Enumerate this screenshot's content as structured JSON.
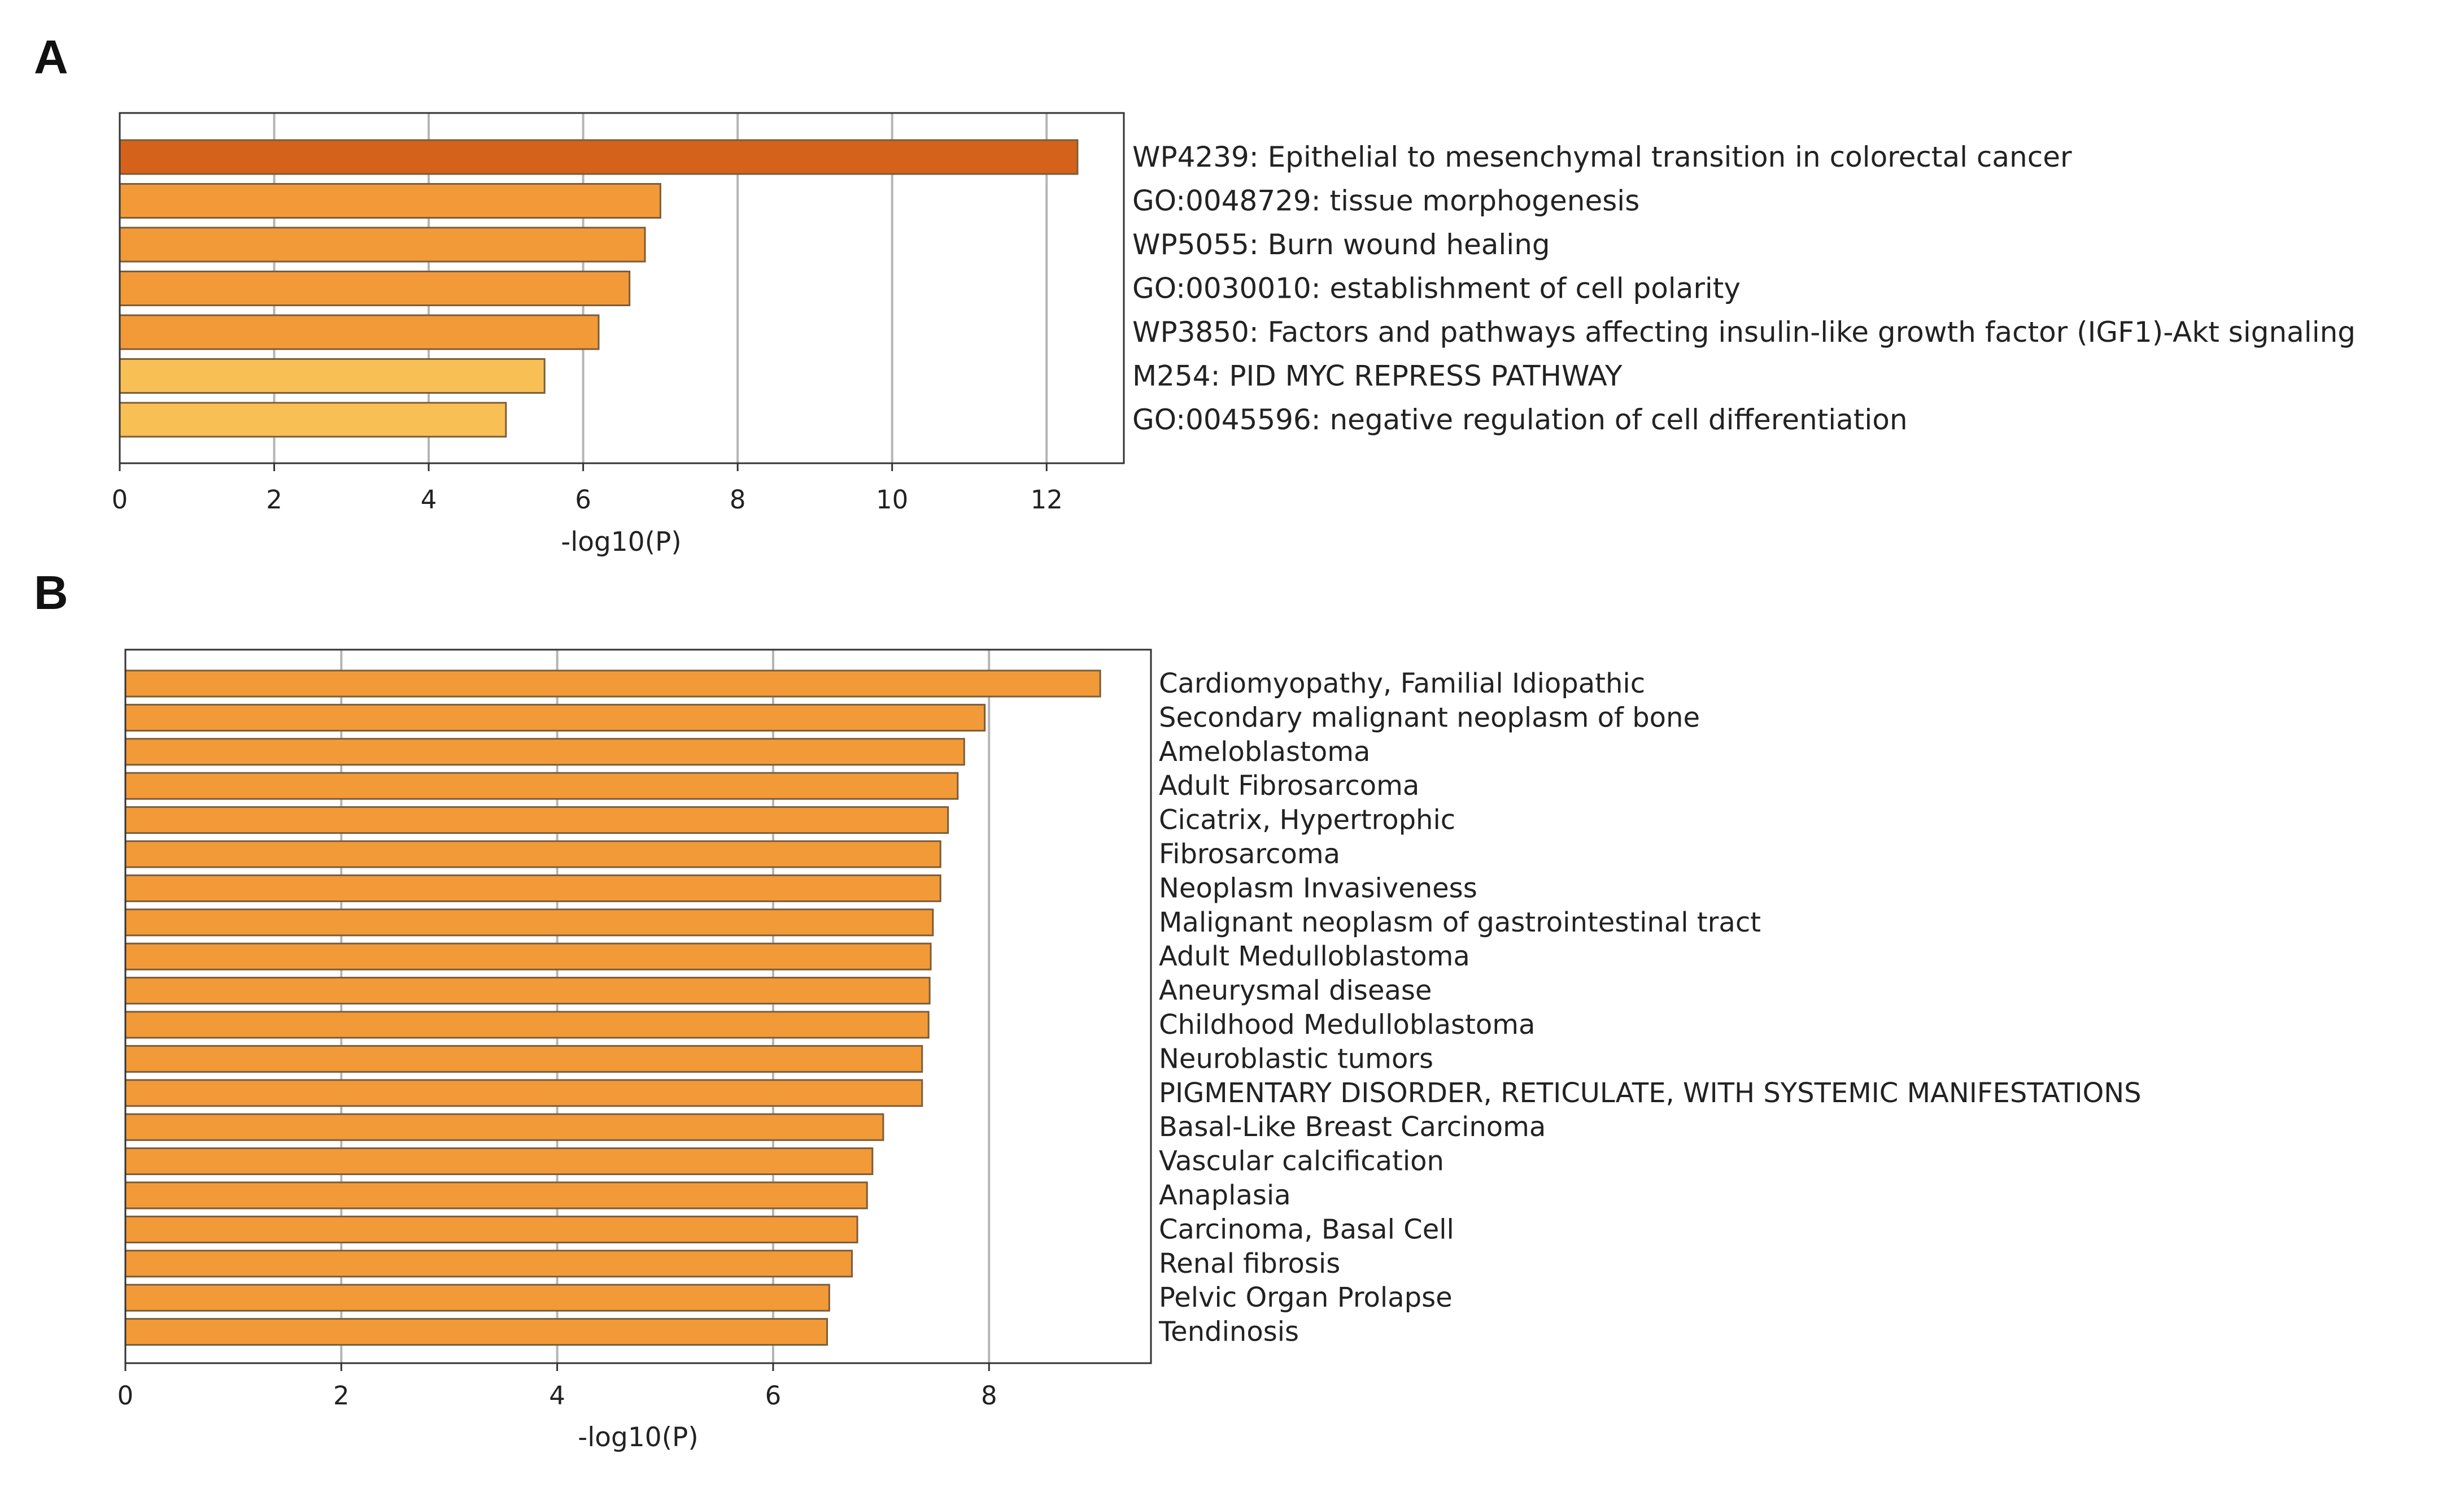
{
  "chart_data": [
    {
      "panel": "A",
      "type": "bar",
      "orientation": "horizontal",
      "xlabel": "-log10(P)",
      "xlim": [
        0,
        13
      ],
      "xticks": [
        0,
        2,
        4,
        6,
        8,
        10,
        12
      ],
      "grid": true,
      "categories": [
        "WP4239: Epithelial to mesenchymal transition in colorectal cancer",
        "GO:0048729: tissue morphogenesis",
        "WP5055: Burn wound healing",
        "GO:0030010: establishment of cell polarity",
        "WP3850: Factors and pathways affecting insulin-like growth factor (IGF1)-Akt signaling",
        "M254: PID MYC REPRESS PATHWAY",
        "GO:0045596: negative regulation of cell differentiation"
      ],
      "values": [
        12.4,
        7.0,
        6.8,
        6.6,
        6.2,
        5.5,
        5.0
      ],
      "colors": [
        "#d4621a",
        "#f39a38",
        "#f39a38",
        "#f39a38",
        "#f39a38",
        "#f8c054",
        "#f8c054"
      ]
    },
    {
      "panel": "B",
      "type": "bar",
      "orientation": "horizontal",
      "xlabel": "-log10(P)",
      "xlim": [
        0,
        9.5
      ],
      "xticks": [
        0,
        2,
        4,
        6,
        8
      ],
      "grid": true,
      "categories": [
        "Cardiomyopathy, Familial Idiopathic",
        "Secondary malignant neoplasm of bone",
        "Ameloblastoma",
        "Adult Fibrosarcoma",
        "Cicatrix, Hypertrophic",
        "Fibrosarcoma",
        "Neoplasm Invasiveness",
        "Malignant neoplasm of gastrointestinal tract",
        "Adult Medulloblastoma",
        "Aneurysmal disease",
        "Childhood Medulloblastoma",
        "Neuroblastic tumors",
        "PIGMENTARY DISORDER, RETICULATE, WITH SYSTEMIC MANIFESTATIONS",
        "Basal-Like Breast Carcinoma",
        "Vascular calcification",
        "Anaplasia",
        "Carcinoma, Basal Cell",
        "Renal fibrosis",
        "Pelvic Organ Prolapse",
        "Tendinosis"
      ],
      "values": [
        9.03,
        7.96,
        7.77,
        7.71,
        7.62,
        7.55,
        7.55,
        7.48,
        7.46,
        7.45,
        7.44,
        7.38,
        7.38,
        7.02,
        6.92,
        6.87,
        6.78,
        6.73,
        6.52,
        6.5
      ],
      "colors": [
        "#f39a38"
      ]
    }
  ]
}
